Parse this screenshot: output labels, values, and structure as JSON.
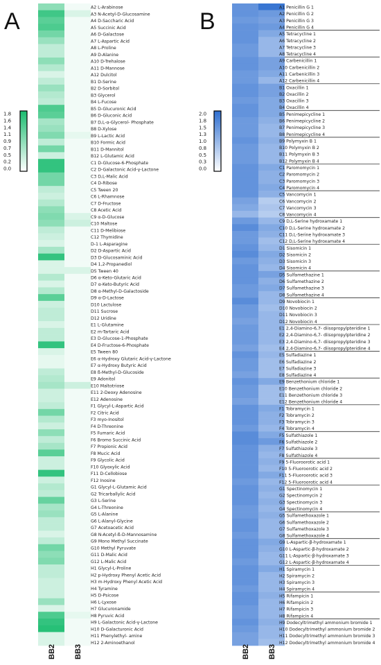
{
  "panel_a": {
    "letter": "A",
    "color_low": "#ffffff",
    "color_high": "#1abc6f",
    "legend_ticks": [
      "1.8",
      "1.6",
      "1.4",
      "1.1",
      "0.9",
      "0.7",
      "0.5",
      "0.2",
      "0.0"
    ]
  },
  "panel_b": {
    "letter": "B",
    "color_low": "#ffffff",
    "color_high": "#2f6fd0",
    "legend_ticks": [
      "2.0",
      "1.8",
      "1.5",
      "1.3",
      "1.0",
      "0.8",
      "0.5",
      "0.3",
      "0.0"
    ]
  },
  "chart_data": [
    {
      "type": "heatmap",
      "columns": [
        "BB2",
        "BB3"
      ],
      "vmin": 0.0,
      "vmax": 1.8,
      "rows": [
        "A2 L-Arabinose",
        "A3 N-Acetyl-D-Glucosamine",
        "A4 D-Saccharic Acid",
        "A5 Succinic Acid",
        "A6 D-Galactose",
        "A7 L-Aspartic Acid",
        "A8 L-Proline",
        "A9 D-Alanine",
        "A10 D-Trehalose",
        "A11 D-Mannose",
        "A12 Dulcitol",
        "B1 D-Serine",
        "B2 D-Sorbitol",
        "B3 Glycerol",
        "B4 L-Fucose",
        "B5 D-Glucuronic Acid",
        "B6 D-Gluconic Acid",
        "B7 D,L-α-Glycerol- Phosphate",
        "B8 D-Xylose",
        "B9 L-Lactic Acid",
        "B10 Formic Acid",
        "B11 D-Mannitol",
        "B12 L-Glutamic Acid",
        "C1 D-Glucose-6-Phosphate",
        "C2 D-Galactonic Acid-γ-Lactone",
        "C3 D,L-Malic Acid",
        "C4 D-Ribose",
        "C5 Tween 20",
        "C6 L-Rhamnose",
        "C7 D-Fructose",
        "C8 Acetic Acid",
        "C9 α-D-Glucose",
        "C10 Maltose",
        "C11 D-Melibiose",
        "C12 Thymidine",
        "D-1 L-Asparagine",
        "D2 D-Aspartic Acid",
        "D3 D-Glucosaminic Acid",
        "D4 1,2-Propanediol",
        "D5 Tween 40",
        "D6 α-Keto-Glutaric Acid",
        "D7 α-Keto-Butyric Acid",
        "D8 α-Methyl-D-Galactoside",
        "D9 α-D-Lactose",
        "D10 Lactulose",
        "D11 Sucrose",
        "D12 Uridine",
        "E1 L-Glutamine",
        "E2 m-Tartaric Acid",
        "E3 D-Glucose-1-Phosphate",
        "E4 D-Fructose-6-Phosphate",
        "E5 Tween 80",
        "E6 α-Hydroxy Glutaric Acid-γ-Lactone",
        "E7 α-Hydroxy Butyric Acid",
        "E8 ß-Methyl-D-Glucoside",
        "E9 Adonitol",
        "E10 Maltotriose",
        "E11 2-Deoxy Adenosine",
        "E12 Adenosine",
        "F1 Glycyl-L-Aspartic Acid",
        "F2 Citric Acid",
        "F3 myo-Inositol",
        "F4 D-Threonine",
        "F5 Fumaric Acid",
        "F6 Bromo Succinic Acid",
        "F7 Propionic Acid",
        "F8 Mucic Acid",
        "F9 Glycolic Acid",
        "F10 Glyoxylic Acid",
        "F11 D-Cellobiose",
        "F12 Inosine",
        "G1 Glycyl-L-Glutamic Acid",
        "G2 Tricarballylic Acid",
        "G3 L-Serine",
        "G4 L-Threonine",
        "G5 L-Alanine",
        "G6 L-Alanyl-Glycine",
        "G7 Acetoacetic Acid",
        "G8 N-Acetyl-ß-D-Mannosamine",
        "G9 Mono Methyl Succinate",
        "G10 Methyl Pyruvate",
        "G11 D-Malic Acid",
        "G12 L-Malic Acid",
        "H1 Glycyl-L-Proline",
        "H2 p-Hydroxy Phenyl Acetic Acid",
        "H3 m-Hydroxy Phenyl Acetic Acid",
        "H4 Tyramine",
        "H5 D-Psicose",
        "H6 L-Lyxose",
        "H7 Glucuronamide",
        "H8 Pyruvic Acid",
        "H9 L-Galactonic Acid-γ-Lactone",
        "H10 D-Galacturonic Acid",
        "H11 Phenylethyl- amine",
        "H12 2-Aminoethanol"
      ],
      "values": [
        [
          0.9,
          0.1
        ],
        [
          1.5,
          0.3
        ],
        [
          1.3,
          0.1
        ],
        [
          1.4,
          0.1
        ],
        [
          1.1,
          0.1
        ],
        [
          0.8,
          0.1
        ],
        [
          0.5,
          0.1
        ],
        [
          0.5,
          0.1
        ],
        [
          0.9,
          0.1
        ],
        [
          0.6,
          0.1
        ],
        [
          0.3,
          0.1
        ],
        [
          0.5,
          0.1
        ],
        [
          0.8,
          0.1
        ],
        [
          0.6,
          0.1
        ],
        [
          0.5,
          0.1
        ],
        [
          1.4,
          0.1
        ],
        [
          1.3,
          0.1
        ],
        [
          0.7,
          0.1
        ],
        [
          0.8,
          0.1
        ],
        [
          1.0,
          0.2
        ],
        [
          0.5,
          0.1
        ],
        [
          1.1,
          0.1
        ],
        [
          0.4,
          0.1
        ],
        [
          1.6,
          0.1
        ],
        [
          1.6,
          0.1
        ],
        [
          1.1,
          0.1
        ],
        [
          1.1,
          0.1
        ],
        [
          0.5,
          0.1
        ],
        [
          0.4,
          0.1
        ],
        [
          0.6,
          0.1
        ],
        [
          0.9,
          0.1
        ],
        [
          1.0,
          0.3
        ],
        [
          0.9,
          0.4
        ],
        [
          0.5,
          0.1
        ],
        [
          0.4,
          0.1
        ],
        [
          0.3,
          0.1
        ],
        [
          0.7,
          0.1
        ],
        [
          1.6,
          0.1
        ],
        [
          0.3,
          0.1
        ],
        [
          0.3,
          0.3
        ],
        [
          0.6,
          0.1
        ],
        [
          0.3,
          0.1
        ],
        [
          0.6,
          0.1
        ],
        [
          1.3,
          0.1
        ],
        [
          0.4,
          0.1
        ],
        [
          0.5,
          0.1
        ],
        [
          0.5,
          0.1
        ],
        [
          0.3,
          0.1
        ],
        [
          0.5,
          0.1
        ],
        [
          0.5,
          0.1
        ],
        [
          1.6,
          0.1
        ],
        [
          0.3,
          0.1
        ],
        [
          0.2,
          0.1
        ],
        [
          0.2,
          0.1
        ],
        [
          0.5,
          0.1
        ],
        [
          0.6,
          0.1
        ],
        [
          0.7,
          0.4
        ],
        [
          0.4,
          0.1
        ],
        [
          0.4,
          0.1
        ],
        [
          0.5,
          0.1
        ],
        [
          1.1,
          0.1
        ],
        [
          0.6,
          0.1
        ],
        [
          0.4,
          0.1
        ],
        [
          0.9,
          0.1
        ],
        [
          0.5,
          0.1
        ],
        [
          0.7,
          0.1
        ],
        [
          1.3,
          0.1
        ],
        [
          0.4,
          0.1
        ],
        [
          0.4,
          0.1
        ],
        [
          1.6,
          0.1
        ],
        [
          0.4,
          0.1
        ],
        [
          0.6,
          0.1
        ],
        [
          0.5,
          0.1
        ],
        [
          1.2,
          0.1
        ],
        [
          0.7,
          0.1
        ],
        [
          0.8,
          0.1
        ],
        [
          0.5,
          0.1
        ],
        [
          0.5,
          0.1
        ],
        [
          0.3,
          0.1
        ],
        [
          0.5,
          0.1
        ],
        [
          1.1,
          0.1
        ],
        [
          0.9,
          0.1
        ],
        [
          1.0,
          0.1
        ],
        [
          0.5,
          0.1
        ],
        [
          0.5,
          0.1
        ],
        [
          0.4,
          0.1
        ],
        [
          0.4,
          0.1
        ],
        [
          0.4,
          0.1
        ],
        [
          0.8,
          0.1
        ],
        [
          0.3,
          0.1
        ],
        [
          1.4,
          0.2
        ],
        [
          1.6,
          0.1
        ],
        [
          1.7,
          0.1
        ],
        [
          0.3,
          0.1
        ],
        [
          0.3,
          0.1
        ]
      ]
    },
    {
      "type": "heatmap",
      "columns": [
        "BB2",
        "BB3"
      ],
      "vmin": 0.0,
      "vmax": 2.0,
      "rows": [
        "A1 Penicillin G 1",
        "A2 Penicillin G 2",
        "A3 Penicillin G 3",
        "A4 Penicillin G 4",
        "A5 Tetracycline 1",
        "A6 Tetracycline 2",
        "A7 Tetracycline 3",
        "A8 Tetracycline 4",
        "A9 Carbenicillin 1",
        "A10 Carbenicillin 2",
        "A11 Carbenicillin 3",
        "A12 Carbenicillin 4",
        "B1 Oxacillin 1",
        "B2 Oxacillin 2",
        "B3 Oxacillin 3",
        "B4 Oxacillin 4",
        "B5 Penimepicycline 1",
        "B6 Penimepicycline 2",
        "B7 Penimepicycline 3",
        "B8 Penimepicycline 4",
        "B9 Polymyxin B 1",
        "B10 Polymyxin B 2",
        "B11 Polymyxin B 3",
        "B12 Polymyxin B 4",
        "C1 Paromomycin 1",
        "C2 Paromomycin 2",
        "C3 Paromomycin 3",
        "C4 Paromomycin 4",
        "C5 Vancomycin 1",
        "C6 Vancomycin 2",
        "C7 Vancomycin 3",
        "C8 Vancomycin 4",
        "C9 D,L-Serine hydroxamate 1",
        "C10 D,L-Serine hydroxamate 2",
        "C11 D,L-Serine hydroxamate 3",
        "C12 D,L-Serine hydroxamate 4",
        "D1 Sisomicin 1",
        "D2 Sisomicin 2",
        "D3 Sisomicin 3",
        "D4 Sisomicin 4",
        "D5 Sulfamethazine 1",
        "D6 Sulfamethazine 2",
        "D7 Sulfamethazine 3",
        "D8 Sulfamethazine 4",
        "D9 Novobiocin 1",
        "D10 Novobiocin 2",
        "D11 Novobiocin 3",
        "D12 Novobiocin 4",
        "E1 2,4-Diamino-6,7- diisopropylpteridine 1",
        "E2 2,4-Diamino-6,7- diisopropylpteridine 2",
        "E3 2,4-Diamino-6,7- diisopropylpteridine 3",
        "E4 2,4-Diamino-6,7- diisopropylpteridine 4",
        "E5 Sulfadiazine 1",
        "E6 Sulfadiazine 2",
        "E7 Sulfadiazine 3",
        "E8 Sulfadiazine 4",
        "E9 Benzethonium chloride 1",
        "E10 Benzethonium chloride 2",
        "E11 Benzethonium chloride 3",
        "E12 Benzethonium chloride 4",
        "F1 Tobramycin 1",
        "F2 Tobramycin 2",
        "F3 Tobramycin 3",
        "F4 Tobramycin 4",
        "F5 Sulfathiazole 1",
        "F6 Sulfathiazole 2",
        "F7 Sulfathiazole 3",
        "F8 Sulfathiazole 4",
        "F9 5-Fluoroorotic acid 1",
        "F10 5-Fluoroorotic acid 2",
        "F11 5-Fluoroorotic acid 3",
        "F12 5-Fluoroorotic acid 4",
        "G1 Spectinomycin 1",
        "G2 Spectinomycin 2",
        "G3 Spectinomycin 3",
        "G4 Spectinomycin 4",
        "G5 Sulfamethoxazole 1",
        "G6 Sulfamethoxazole 2",
        "G7 Sulfamethoxazole 3",
        "G8 Sulfamethoxazole 4",
        "G9 L-Aspartic-β-hydroxamate 1",
        "G10 L-Aspartic-β-hydroxamate 2",
        "G11 L-Aspartic-β-hydroxamate 3",
        "G12 L-Aspartic-β-hydroxamate 4",
        "H1 Spiramycin 1",
        "H2 Spiramycin 2",
        "H3 Spiramycin 3",
        "H4 Spiramycin 4",
        "H5 Rifampicin 1",
        "H6 Rifampicin 2",
        "H7 Rifampicin 3",
        "H8 Rifampicin 4",
        "H9 Dodecyltrimethyl ammonium bromide 1",
        "H10 Dodecyltrimethyl ammonium bromide 2",
        "H11 Dodecyltrimethyl ammonium bromide 3",
        "H12 Dodecyltrimethyl ammonium bromide 4"
      ],
      "values": [
        [
          1.5,
          1.9
        ],
        [
          1.5,
          1.4
        ],
        [
          1.4,
          1.3
        ],
        [
          1.5,
          1.4
        ],
        [
          1.5,
          1.2
        ],
        [
          1.5,
          1.0
        ],
        [
          1.4,
          1.0
        ],
        [
          1.4,
          1.0
        ],
        [
          1.5,
          1.3
        ],
        [
          1.5,
          1.3
        ],
        [
          1.4,
          1.2
        ],
        [
          1.4,
          1.0
        ],
        [
          1.5,
          1.3
        ],
        [
          1.5,
          1.3
        ],
        [
          1.4,
          1.2
        ],
        [
          1.5,
          1.2
        ],
        [
          1.5,
          1.2
        ],
        [
          1.4,
          1.1
        ],
        [
          1.4,
          1.0
        ],
        [
          1.4,
          1.0
        ],
        [
          1.5,
          1.1
        ],
        [
          1.4,
          1.0
        ],
        [
          1.4,
          1.0
        ],
        [
          1.4,
          1.0
        ],
        [
          1.5,
          1.2
        ],
        [
          1.5,
          1.1
        ],
        [
          1.5,
          1.1
        ],
        [
          1.5,
          1.2
        ],
        [
          1.5,
          1.1
        ],
        [
          1.3,
          0.7
        ],
        [
          1.2,
          0.8
        ],
        [
          1.0,
          0.7
        ],
        [
          1.4,
          1.0
        ],
        [
          1.6,
          1.2
        ],
        [
          1.4,
          1.1
        ],
        [
          1.4,
          0.9
        ],
        [
          1.5,
          1.0
        ],
        [
          1.6,
          1.2
        ],
        [
          1.4,
          1.1
        ],
        [
          1.5,
          1.0
        ],
        [
          1.5,
          1.3
        ],
        [
          1.5,
          1.1
        ],
        [
          1.4,
          1.2
        ],
        [
          1.4,
          1.0
        ],
        [
          1.6,
          1.0
        ],
        [
          1.4,
          0.9
        ],
        [
          1.4,
          1.0
        ],
        [
          1.3,
          1.0
        ],
        [
          1.4,
          1.0
        ],
        [
          1.4,
          1.0
        ],
        [
          1.4,
          1.0
        ],
        [
          1.3,
          0.9
        ],
        [
          1.5,
          1.0
        ],
        [
          1.4,
          0.9
        ],
        [
          1.4,
          0.9
        ],
        [
          1.3,
          0.9
        ],
        [
          1.5,
          1.2
        ],
        [
          1.4,
          0.9
        ],
        [
          1.4,
          0.9
        ],
        [
          1.3,
          0.9
        ],
        [
          1.5,
          1.2
        ],
        [
          1.5,
          1.1
        ],
        [
          1.5,
          1.1
        ],
        [
          1.4,
          1.0
        ],
        [
          1.6,
          1.2
        ],
        [
          1.6,
          1.4
        ],
        [
          1.5,
          1.1
        ],
        [
          1.5,
          1.0
        ],
        [
          1.5,
          1.1
        ],
        [
          1.5,
          1.0
        ],
        [
          1.5,
          1.2
        ],
        [
          1.4,
          1.0
        ],
        [
          1.5,
          1.1
        ],
        [
          1.5,
          1.0
        ],
        [
          1.5,
          1.1
        ],
        [
          1.4,
          1.0
        ],
        [
          1.4,
          1.1
        ],
        [
          1.5,
          1.0
        ],
        [
          1.5,
          1.0
        ],
        [
          1.4,
          1.0
        ],
        [
          1.5,
          1.2
        ],
        [
          1.5,
          1.1
        ],
        [
          1.5,
          1.0
        ],
        [
          1.4,
          1.0
        ],
        [
          1.5,
          1.2
        ],
        [
          1.5,
          1.0
        ],
        [
          1.5,
          1.0
        ],
        [
          1.4,
          1.0
        ],
        [
          1.5,
          1.1
        ],
        [
          1.5,
          1.0
        ],
        [
          1.4,
          1.0
        ],
        [
          1.4,
          1.0
        ],
        [
          1.5,
          1.1
        ],
        [
          1.4,
          1.0
        ],
        [
          1.3,
          1.0
        ],
        [
          1.3,
          0.9
        ]
      ]
    }
  ]
}
